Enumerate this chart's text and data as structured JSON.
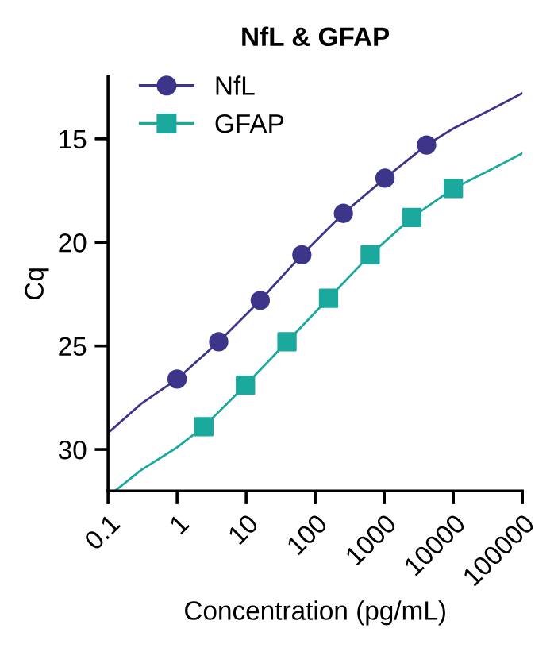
{
  "chart_data": {
    "type": "scatter",
    "title": "NfL & GFAP",
    "xlabel": "Concentration (pg/mL)",
    "ylabel": "Cq",
    "log": "x",
    "xlim": [
      0.1,
      100000
    ],
    "xticks": [
      0.1,
      1,
      10,
      100,
      1000,
      10000,
      100000
    ],
    "ylim": [
      32,
      12
    ],
    "yticks": [
      15,
      20,
      25,
      30
    ],
    "grid": false,
    "legend": "top left",
    "series": [
      {
        "name": "NfL",
        "marker": "circle",
        "color": "#3d3589",
        "x": [
          1,
          4,
          16,
          64,
          256,
          1024,
          4096
        ],
        "values": [
          26.6,
          24.8,
          22.8,
          20.6,
          18.6,
          16.9,
          15.3
        ]
      },
      {
        "name": "GFAP",
        "marker": "square",
        "color": "#1ba89d",
        "x": [
          2.44,
          9.77,
          39,
          156,
          625,
          2500,
          10000
        ],
        "values": [
          28.9,
          26.9,
          24.8,
          22.7,
          20.6,
          18.8,
          17.4
        ]
      },
      {
        "type": "line",
        "marker": "none",
        "color": "#3d3589",
        "x": [
          0.1,
          0.3,
          1,
          4,
          16,
          64,
          256,
          1024,
          4096,
          10000,
          30000,
          100000
        ],
        "values": [
          29.2,
          27.8,
          26.6,
          24.8,
          22.8,
          20.6,
          18.6,
          16.9,
          15.3,
          14.5,
          13.7,
          12.8
        ]
      },
      {
        "type": "line",
        "marker": "none",
        "color": "#1ba89d",
        "x": [
          0.126,
          0.3,
          1,
          2.44,
          9.77,
          39,
          156,
          625,
          2500,
          10000,
          30000,
          100000
        ],
        "values": [
          32.0,
          31.0,
          29.9,
          28.9,
          26.9,
          24.8,
          22.7,
          20.6,
          18.8,
          17.4,
          16.6,
          15.7
        ]
      }
    ]
  }
}
